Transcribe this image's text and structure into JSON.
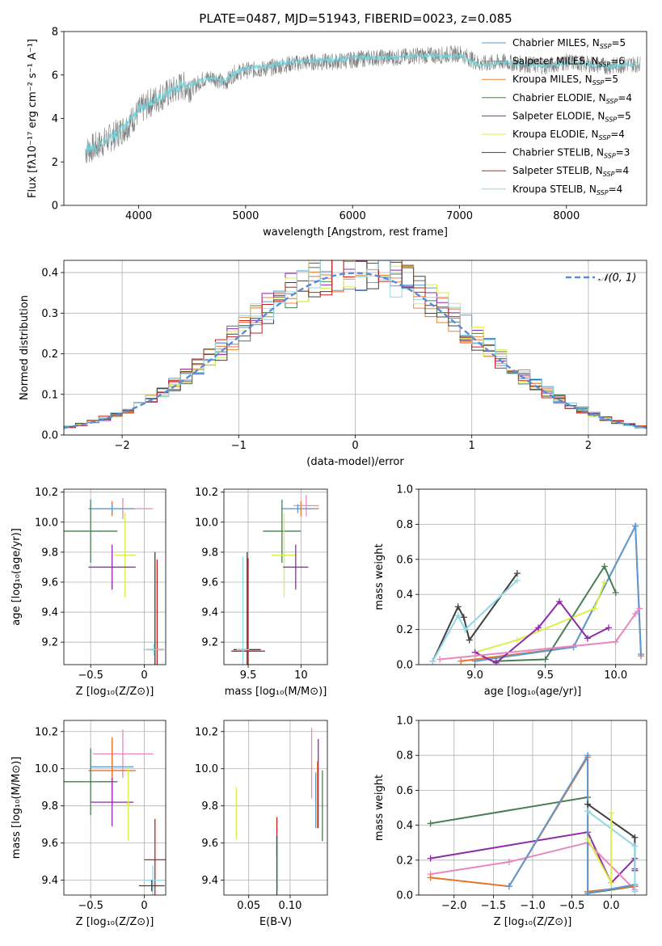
{
  "figure": {
    "title": "PLATE=0487, MJD=51943, FIBERID=0023, z=0.085"
  },
  "legend_entries": [
    {
      "name": "Chabrier MILES",
      "nssp": "5",
      "color": "#5a9bd4"
    },
    {
      "name": "Salpeter MILES",
      "nssp": "6",
      "color": "#e8722a"
    },
    {
      "name": "Kroupa MILES",
      "nssp": "5",
      "color": "#e8873a"
    },
    {
      "name": "Chabrier ELODIE",
      "nssp": "4",
      "color": "#4a7d55"
    },
    {
      "name": "Salpeter ELODIE",
      "nssp": "5",
      "color": "#8e2aa8"
    },
    {
      "name": "Kroupa ELODIE",
      "nssp": "4",
      "color": "#d9ef4a"
    },
    {
      "name": "Chabrier STELIB",
      "nssp": "3",
      "color": "#404040"
    },
    {
      "name": "Salpeter STELIB",
      "nssp": "4",
      "color": "#c8201e"
    },
    {
      "name": "Kroupa STELIB",
      "nssp": "4",
      "color": "#8ed8e6"
    }
  ],
  "chart_data": [
    {
      "id": "spectrum",
      "type": "line",
      "xlabel": "wavelength [Angstrom, rest frame]",
      "ylabel": "Flux [fλ10⁻¹⁷ erg cm⁻² s⁻¹ A⁻¹]",
      "xlim": [
        3300,
        8750
      ],
      "ylim": [
        0,
        8
      ],
      "xticks": [
        4000,
        5000,
        6000,
        7000,
        8000
      ],
      "yticks": [
        0,
        2,
        4,
        6,
        8
      ],
      "series": [
        {
          "name": "data",
          "color": "#808080",
          "x": [
            3500,
            3600,
            3700,
            3800,
            3900,
            4000,
            4100,
            4200,
            4300,
            4400,
            4500,
            4600,
            4700,
            4800,
            4900,
            5000,
            5200,
            5400,
            5600,
            5800,
            6000,
            6200,
            6400,
            6600,
            6800,
            7000,
            7200,
            7400,
            7600,
            7800,
            8000,
            8200,
            8400,
            8600
          ],
          "y": [
            2.5,
            2.7,
            3.0,
            3.3,
            3.7,
            4.3,
            4.7,
            5.0,
            5.2,
            5.5,
            5.4,
            5.8,
            5.9,
            5.6,
            6.1,
            6.2,
            6.3,
            6.5,
            6.6,
            6.6,
            6.7,
            6.8,
            6.8,
            6.9,
            6.9,
            7.0,
            6.5,
            6.6,
            6.5,
            6.4,
            6.6,
            6.5,
            6.4,
            6.5
          ]
        },
        {
          "name": "model",
          "color": "#6fd3dc",
          "x": [
            3500,
            3600,
            3700,
            3800,
            3900,
            4000,
            4100,
            4200,
            4300,
            4400,
            4500,
            4600,
            4700,
            4800,
            4900,
            5000,
            5200,
            5400,
            5600,
            5800,
            6000,
            6200,
            6400,
            6600,
            6800,
            7000,
            7200,
            7400,
            7600,
            7800,
            8000,
            8200,
            8400,
            8600
          ],
          "y": [
            2.6,
            2.7,
            3.0,
            3.3,
            3.8,
            4.4,
            4.8,
            5.0,
            5.3,
            5.5,
            5.5,
            5.8,
            5.9,
            5.7,
            6.1,
            6.3,
            6.4,
            6.6,
            6.7,
            6.7,
            6.8,
            6.8,
            6.8,
            6.9,
            6.9,
            6.9,
            6.4,
            6.6,
            6.5,
            6.4,
            6.6,
            6.5,
            6.4,
            6.5
          ]
        }
      ]
    },
    {
      "id": "residuals",
      "type": "bar",
      "xlabel": "(data-model)/error",
      "ylabel": "Normed distribution",
      "xlim": [
        -2.5,
        2.5
      ],
      "ylim": [
        0,
        0.43
      ],
      "xticks": [
        -2,
        -1,
        0,
        1,
        2
      ],
      "yticks": [
        0.0,
        0.1,
        0.2,
        0.3,
        0.4
      ],
      "legend": "𝒩(0, 1)",
      "grid": true,
      "bin_edges_start": -2.5,
      "bin_width": 0.1
    },
    {
      "id": "age_vs_Z",
      "type": "scatter",
      "xlabel": "Z [log₁₀(Z/Z⊙)]",
      "ylabel": "age  [log₁₀(age/yr)]",
      "xlim": [
        -0.75,
        0.2
      ],
      "ylim": [
        9.05,
        10.22
      ],
      "xticks": [
        -0.5,
        0.0
      ],
      "yticks": [
        9.2,
        9.4,
        9.6,
        9.8,
        10.0,
        10.2
      ],
      "points": [
        {
          "x": -0.3,
          "y": 10.09,
          "xerr": 0.22,
          "yerr": 0.05,
          "color": "#e8722a"
        },
        {
          "x": -0.2,
          "y": 10.09,
          "xerr": 0.28,
          "yerr": 0.07,
          "color": "#e887c0"
        },
        {
          "x": -0.3,
          "y": 10.09,
          "xerr": 0.2,
          "yerr": 0.03,
          "color": "#5a9bd4"
        },
        {
          "x": -0.5,
          "y": 9.94,
          "xerr": 0.25,
          "yerr": 0.21,
          "color": "#4a7d55"
        },
        {
          "x": -0.18,
          "y": 9.78,
          "xerr": 0.1,
          "yerr": 0.28,
          "color": "#d9ef4a"
        },
        {
          "x": -0.3,
          "y": 9.7,
          "xerr": 0.22,
          "yerr": 0.15,
          "color": "#8e2aa8"
        },
        {
          "x": 0.1,
          "y": 9.15,
          "xerr": 0.08,
          "yerr": 0.65,
          "color": "#404040"
        },
        {
          "x": 0.12,
          "y": 9.15,
          "xerr": 0.06,
          "yerr": 0.6,
          "color": "#c8201e"
        },
        {
          "x": 0.09,
          "y": 9.15,
          "xerr": 0.1,
          "yerr": 0.04,
          "color": "#8ed8e6"
        }
      ]
    },
    {
      "id": "age_vs_mass",
      "type": "scatter",
      "xlabel": "mass [log₁₀(M/M⊙)]",
      "ylabel": "",
      "xlim": [
        9.27,
        10.25
      ],
      "ylim": [
        9.05,
        10.22
      ],
      "xticks": [
        9.5,
        10.0
      ],
      "yticks": [
        9.2,
        9.4,
        9.6,
        9.8,
        10.0,
        10.2
      ],
      "points": [
        {
          "x": 10.0,
          "y": 10.09,
          "xerr": 0.17,
          "yerr": 0.05,
          "color": "#e8722a"
        },
        {
          "x": 10.05,
          "y": 10.11,
          "xerr": 0.12,
          "yerr": 0.07,
          "color": "#e887c0"
        },
        {
          "x": 9.97,
          "y": 10.09,
          "xerr": 0.15,
          "yerr": 0.03,
          "color": "#5a9bd4"
        },
        {
          "x": 9.82,
          "y": 9.94,
          "xerr": 0.18,
          "yerr": 0.21,
          "color": "#4a7d55"
        },
        {
          "x": 9.84,
          "y": 9.78,
          "xerr": 0.12,
          "yerr": 0.28,
          "color": "#d9ef4a"
        },
        {
          "x": 9.95,
          "y": 9.7,
          "xerr": 0.12,
          "yerr": 0.15,
          "color": "#8e2aa8"
        },
        {
          "x": 9.49,
          "y": 9.15,
          "xerr": 0.13,
          "yerr": 0.65,
          "color": "#404040"
        },
        {
          "x": 9.5,
          "y": 9.14,
          "xerr": 0.16,
          "yerr": 0.62,
          "color": "#c8201e"
        },
        {
          "x": 9.45,
          "y": 9.15,
          "xerr": 0.06,
          "yerr": 0.62,
          "color": "#8ed8e6"
        }
      ]
    },
    {
      "id": "weight_vs_age",
      "type": "line",
      "xlabel": "age  [log₁₀(age/yr)]",
      "ylabel": "mass weight",
      "xlim": [
        8.6,
        10.22
      ],
      "ylim": [
        0,
        1.0
      ],
      "xticks": [
        9.0,
        9.5,
        10.0
      ],
      "yticks": [
        0.0,
        0.2,
        0.4,
        0.6,
        0.8,
        1.0
      ],
      "series": [
        {
          "color": "#404040",
          "x": [
            8.7,
            8.88,
            8.92,
            8.96,
            9.3
          ],
          "y": [
            0.02,
            0.33,
            0.27,
            0.14,
            0.52
          ]
        },
        {
          "color": "#8ed8e6",
          "x": [
            8.7,
            8.88,
            8.93,
            9.3
          ],
          "y": [
            0.02,
            0.28,
            0.2,
            0.48
          ]
        },
        {
          "color": "#e8722a",
          "x": [
            8.9,
            9.0,
            9.7,
            10.14,
            10.18
          ],
          "y": [
            0.02,
            0.03,
            0.1,
            0.79,
            0.05
          ]
        },
        {
          "color": "#5a9bd4",
          "x": [
            9.0,
            9.7,
            10.14,
            10.18
          ],
          "y": [
            0.02,
            0.1,
            0.79,
            0.06
          ]
        },
        {
          "color": "#4a7d55",
          "x": [
            9.15,
            9.5,
            9.92,
            10.0
          ],
          "y": [
            0.02,
            0.03,
            0.56,
            0.41
          ]
        },
        {
          "color": "#d9ef4a",
          "x": [
            9.0,
            9.3,
            9.85,
            9.92
          ],
          "y": [
            0.07,
            0.14,
            0.32,
            0.47
          ]
        },
        {
          "color": "#8e2aa8",
          "x": [
            9.0,
            9.15,
            9.45,
            9.6,
            9.8,
            9.95
          ],
          "y": [
            0.07,
            0.01,
            0.21,
            0.36,
            0.15,
            0.21
          ]
        },
        {
          "color": "#e887c0",
          "x": [
            8.75,
            9.0,
            10.0,
            10.14,
            10.17
          ],
          "y": [
            0.03,
            0.05,
            0.13,
            0.29,
            0.32
          ]
        }
      ]
    },
    {
      "id": "mass_vs_Z",
      "type": "scatter",
      "xlabel": "Z [log₁₀(Z/Z⊙)]",
      "ylabel": "mass [log₁₀(M/M⊙)]",
      "xlim": [
        -0.75,
        0.2
      ],
      "ylim": [
        9.32,
        10.26
      ],
      "xticks": [
        -0.5,
        0.0
      ],
      "yticks": [
        9.4,
        9.6,
        9.8,
        10.0,
        10.2
      ],
      "points": [
        {
          "x": -0.2,
          "y": 10.08,
          "xerr": 0.28,
          "yerr": 0.13,
          "color": "#e887c0"
        },
        {
          "x": -0.3,
          "y": 10.01,
          "xerr": 0.2,
          "yerr": 0.14,
          "color": "#5a9bd4"
        },
        {
          "x": -0.3,
          "y": 9.99,
          "xerr": 0.22,
          "yerr": 0.18,
          "color": "#e8722a"
        },
        {
          "x": -0.5,
          "y": 9.93,
          "xerr": 0.25,
          "yerr": 0.18,
          "color": "#4a7d55"
        },
        {
          "x": -0.3,
          "y": 9.82,
          "xerr": 0.2,
          "yerr": 0.13,
          "color": "#8e2aa8"
        },
        {
          "x": -0.15,
          "y": 9.81,
          "xerr": 0.02,
          "yerr": 0.2,
          "color": "#d9ef4a"
        },
        {
          "x": 0.1,
          "y": 9.51,
          "xerr": 0.1,
          "yerr": 0.22,
          "color": "#c8201e"
        },
        {
          "x": 0.08,
          "y": 9.4,
          "xerr": 0.09,
          "yerr": 0.08,
          "color": "#8ed8e6"
        },
        {
          "x": 0.07,
          "y": 9.37,
          "xerr": 0.12,
          "yerr": 0.03,
          "color": "#404040"
        }
      ]
    },
    {
      "id": "mass_vs_ebv",
      "type": "scatter",
      "xlabel": "E(B-V)",
      "ylabel": "",
      "xlim": [
        0.02,
        0.145
      ],
      "ylim": [
        9.32,
        10.26
      ],
      "xticks": [
        0.05,
        0.1
      ],
      "yticks": [
        9.4,
        9.6,
        9.8,
        10.0,
        10.2
      ],
      "points": [
        {
          "x": 0.035,
          "y": 9.76,
          "xerr": 0,
          "yerr": 0.14,
          "color": "#d9ef4a"
        },
        {
          "x": 0.084,
          "y": 9.63,
          "xerr": 0,
          "yerr": 0.11,
          "color": "#c8201e"
        },
        {
          "x": 0.084,
          "y": 9.48,
          "xerr": 0,
          "yerr": 0.16,
          "color": "#404040"
        },
        {
          "x": 0.085,
          "y": 9.48,
          "xerr": 0,
          "yerr": 0.14,
          "color": "#8ed8e6"
        },
        {
          "x": 0.126,
          "y": 10.03,
          "xerr": 0,
          "yerr": 0.19,
          "color": "#e887c0"
        },
        {
          "x": 0.131,
          "y": 9.83,
          "xerr": 0,
          "yerr": 0.15,
          "color": "#5a9bd4"
        },
        {
          "x": 0.133,
          "y": 9.86,
          "xerr": 0,
          "yerr": 0.18,
          "color": "#e8722a"
        },
        {
          "x": 0.134,
          "y": 9.92,
          "xerr": 0,
          "yerr": 0.24,
          "color": "#8e2aa8"
        },
        {
          "x": 0.139,
          "y": 9.8,
          "xerr": 0,
          "yerr": 0.19,
          "color": "#4a7d55"
        }
      ]
    },
    {
      "id": "weight_vs_Z",
      "type": "line",
      "xlabel": "Z [log₁₀(Z/Z⊙)]",
      "ylabel": "mass weight",
      "xlim": [
        -2.45,
        0.45
      ],
      "ylim": [
        0,
        1.0
      ],
      "xticks": [
        -2.0,
        -1.5,
        -1.0,
        -0.5,
        0.0
      ],
      "yticks": [
        0.0,
        0.2,
        0.4,
        0.6,
        0.8,
        1.0
      ],
      "series": [
        {
          "color": "#4a7d55",
          "x": [
            -2.3,
            -0.3,
            -0.3,
            0.3
          ],
          "y": [
            0.41,
            0.56,
            0.01,
            0.05
          ]
        },
        {
          "color": "#8e2aa8",
          "x": [
            -2.3,
            -0.3,
            0.0,
            0.3,
            0.3
          ],
          "y": [
            0.21,
            0.36,
            0.07,
            0.21,
            0.15
          ]
        },
        {
          "color": "#e887c0",
          "x": [
            -2.3,
            -1.3,
            -0.3,
            0.3,
            0.3
          ],
          "y": [
            0.12,
            0.19,
            0.3,
            0.03,
            0.05
          ]
        },
        {
          "color": "#e8722a",
          "x": [
            -2.3,
            -1.3,
            -0.3,
            -0.3,
            0.3
          ],
          "y": [
            0.1,
            0.05,
            0.79,
            0.02,
            0.05
          ]
        },
        {
          "color": "#5a9bd4",
          "x": [
            -1.3,
            -0.3,
            -0.3,
            0.3
          ],
          "y": [
            0.05,
            0.8,
            0.01,
            0.06
          ]
        },
        {
          "color": "#404040",
          "x": [
            -0.3,
            0.3,
            0.3
          ],
          "y": [
            0.52,
            0.33,
            0.14
          ]
        },
        {
          "color": "#8ed8e6",
          "x": [
            -0.3,
            0.3,
            0.3
          ],
          "y": [
            0.48,
            0.28,
            0.02
          ]
        },
        {
          "color": "#d9ef4a",
          "x": [
            -0.3,
            0.0,
            0.0
          ],
          "y": [
            0.32,
            0.07,
            0.47
          ]
        }
      ]
    }
  ]
}
